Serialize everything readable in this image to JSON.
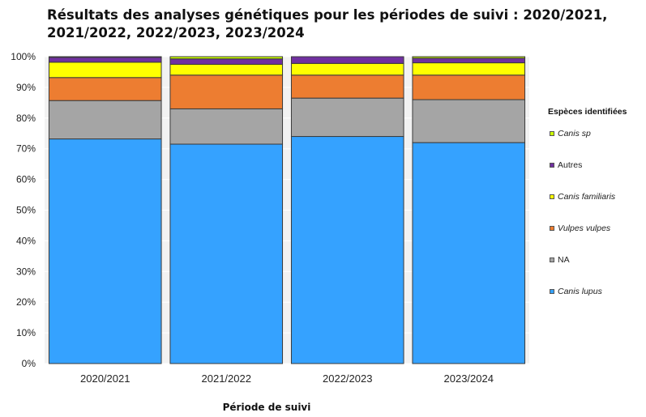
{
  "chart_data": {
    "type": "bar",
    "stacked": true,
    "percent": true,
    "title": "Résultats des analyses génétiques pour les périodes de suivi : 2020/2021, 2021/2022, 2022/2023, 2023/2024",
    "title_lines": [
      "Résultats des analyses génétiques pour les périodes de suivi : 2020/2021,",
      "2021/2022, 2022/2023, 2023/2024"
    ],
    "xlabel": "Période de suivi",
    "ylabel": "",
    "ylim": [
      0,
      100
    ],
    "yticks": [
      "0%",
      "10%",
      "20%",
      "30%",
      "40%",
      "50%",
      "60%",
      "70%",
      "80%",
      "90%",
      "100%"
    ],
    "categories": [
      "2020/2021",
      "2021/2022",
      "2022/2023",
      "2023/2024"
    ],
    "legend_title": "Espèces identifiées",
    "legend_position": "right",
    "series": [
      {
        "name": "Canis lupus",
        "color": "#35a2ff",
        "italic": true,
        "values": [
          73.2,
          71.5,
          74.0,
          72.0
        ]
      },
      {
        "name": "NA",
        "color": "#a5a5a5",
        "italic": false,
        "values": [
          12.5,
          11.5,
          12.5,
          14.0
        ]
      },
      {
        "name": "Vulpes vulpes",
        "color": "#ed7d31",
        "italic": true,
        "values": [
          7.5,
          11.0,
          7.5,
          8.0
        ]
      },
      {
        "name": "Canis familiaris",
        "color": "#ffff00",
        "italic": true,
        "values": [
          5.0,
          3.5,
          3.8,
          4.0
        ]
      },
      {
        "name": "Autres",
        "color": "#7030a0",
        "italic": false,
        "values": [
          1.6,
          1.8,
          2.2,
          1.5
        ]
      },
      {
        "name": "Canis sp",
        "color": "#ccff00",
        "italic": true,
        "values": [
          0.2,
          0.7,
          0.0,
          0.5
        ]
      }
    ],
    "grid": true,
    "background": "#f2f2f2"
  }
}
